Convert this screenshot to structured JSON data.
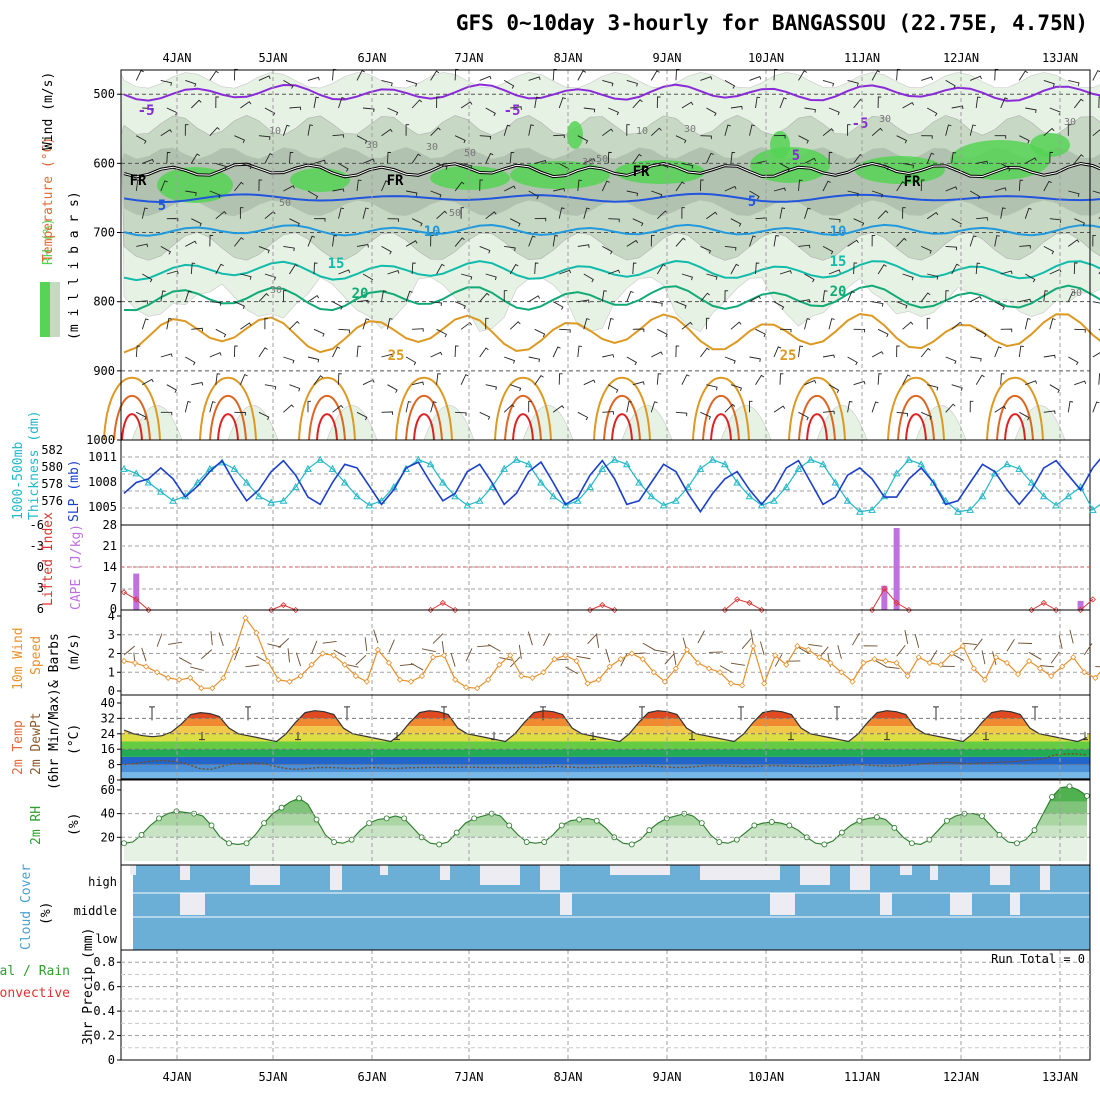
{
  "title": "GFS 0~10day 3-hourly for BANGASSOU (22.75E, 4.75N)",
  "colors": {
    "frame": "#000000",
    "grid": "#a0a0a0",
    "rh_light": "#e6f2e4",
    "rh_mid": "#c7d9c5",
    "rh_dark": "#a9b8a8",
    "rh_green": "#55d455",
    "temp_purple": "#8a2bd8",
    "temp_blue": "#2255dd",
    "temp_lightblue": "#2299dd",
    "temp_teal": "#11bbaa",
    "temp_green": "#11aa77",
    "temp_orange": "#dd9922",
    "temp_darkorange": "#dd6622",
    "temp_red": "#dd2222",
    "slp": "#1a3fcc",
    "thickness": "#22b8c8",
    "cape": "#c070e0",
    "lifted": "#dd3333",
    "wind10m": "#e8902a",
    "rh2m": "#2fa02f",
    "cloud": "#6baed6",
    "cloud_gap": "#ececf2"
  },
  "x_axis": {
    "labels": [
      "4JAN",
      "5JAN",
      "6JAN",
      "7JAN",
      "8JAN",
      "9JAN",
      "10JAN",
      "11JAN",
      "12JAN",
      "13JAN"
    ]
  },
  "panels": {
    "upper": {
      "label_rh": "RH (%)",
      "label_temp": "Temperature (°C)",
      "label_wind": "Wind (m/s)",
      "label_unit": "(m i l l i b a r s)",
      "y_ticks": [
        "500",
        "600",
        "700",
        "800",
        "900",
        "1000"
      ],
      "contour_labels": [
        "-5",
        "-5",
        "-5",
        "5",
        "5",
        "5",
        "10",
        "10",
        "15",
        "15",
        "20",
        "20",
        "25",
        "25",
        "FR",
        "FR",
        "FR",
        "FR",
        "10",
        "10",
        "30",
        "30",
        "50",
        "50",
        "30",
        "30",
        "30",
        "30",
        "30",
        "50",
        "50",
        "30"
      ]
    },
    "slp": {
      "label_thick": "1000-500mb",
      "label_thick2": "Thickness (dm)",
      "label_slp": "SLP (mb)",
      "left_ticks": [
        "582",
        "580",
        "578",
        "576"
      ],
      "right_ticks": [
        "1011",
        "1008",
        "1005"
      ]
    },
    "cape": {
      "label_li": "Lifted Index",
      "label_cape": "CAPE (J/kg)",
      "left_ticks": [
        "-6",
        "-3",
        "0",
        "3",
        "6"
      ],
      "right_ticks": [
        "28",
        "21",
        "14",
        "7",
        "0"
      ]
    },
    "wind10m": {
      "label1": "10m Wind",
      "label2": "Speed",
      "label3": "& Barbs",
      "unit": "(m/s)",
      "ticks": [
        "4",
        "3",
        "2",
        "1",
        "0"
      ]
    },
    "temp2m": {
      "label1": "2m Temp",
      "label2": "2m DewPt",
      "label3": "(6hr Min/Max)",
      "unit": "(°C)",
      "ticks": [
        "40",
        "32",
        "24",
        "16",
        "8",
        "0"
      ]
    },
    "rh2m": {
      "label": "2m RH",
      "unit": "(%)",
      "ticks": [
        "60",
        "40",
        "20"
      ]
    },
    "cloud": {
      "label": "Cloud Cover",
      "unit": "(%)",
      "levels": [
        "high",
        "middle",
        "low"
      ]
    },
    "precip": {
      "label_total": "Total / Rain",
      "label_conv": "Convective",
      "label_axis": "3hr Precip (mm)",
      "run_total": "Run Total = 0",
      "ticks": [
        "0.8",
        "0.6",
        "0.4",
        "0.2",
        "0"
      ]
    }
  },
  "chart_data": [
    {
      "type": "line",
      "title": "SLP (mb)",
      "series": [
        {
          "name": "SLP",
          "values": [
            1006.5,
            1008.0,
            1008.5,
            1010.0,
            1008.5,
            1006.0,
            1007.5,
            1009.5,
            1011.0,
            1008.0,
            1005.5,
            1007.0,
            1009.5,
            1011.0,
            1009.0,
            1006.0,
            1005.0,
            1008.0,
            1010.5,
            1010.0,
            1007.5,
            1005.0,
            1007.0,
            1010.0,
            1010.8,
            1008.0,
            1005.5,
            1006.5,
            1009.5,
            1010.5,
            1008.0,
            1005.0,
            1006.5,
            1009.5,
            1010.8,
            1008.0,
            1005.0,
            1006.0,
            1009.0,
            1011.0,
            1008.5,
            1005.0,
            1005.5,
            1008.0,
            1010.5,
            1009.5,
            1006.5,
            1004.0,
            1006.5,
            1008.5,
            1009.5,
            1007.0,
            1005.0,
            1007.0,
            1010.0,
            1011.0,
            1008.0,
            1005.0,
            1006.0,
            1009.0,
            1010.0,
            1008.5,
            1006.0,
            1006.0,
            1008.5,
            1010.0,
            1008.0,
            1005.0,
            1005.5,
            1008.0,
            1010.5,
            1009.5,
            1007.0,
            1005.0,
            1007.0,
            1010.0,
            1011.0,
            1009.0,
            1007.0,
            1010.0,
            1012.0
          ]
        }
      ],
      "ylim": [
        1003,
        1013
      ]
    },
    {
      "type": "line",
      "title": "1000-500mb Thickness (dm)",
      "series": [
        {
          "name": "Thickness",
          "values": [
            580.5,
            580.0,
            579.0,
            578.0,
            577.0,
            577.5,
            579.0,
            580.5,
            581.2,
            580.5,
            579.0,
            577.5,
            576.8,
            577.0,
            578.5,
            580.5,
            581.5,
            580.5,
            579.0,
            577.5,
            576.5,
            577.0,
            578.5,
            580.5,
            581.5,
            581.0,
            579.0,
            577.5,
            576.5,
            577.0,
            578.5,
            580.5,
            581.5,
            581.0,
            579.0,
            577.5,
            576.5,
            577.0,
            578.5,
            580.5,
            581.5,
            581.0,
            579.0,
            577.5,
            576.5,
            577.0,
            578.5,
            580.5,
            581.5,
            581.0,
            579.0,
            577.5,
            576.5,
            577.0,
            578.5,
            580.5,
            581.5,
            581.0,
            579.0,
            577.0,
            575.8,
            576.0,
            577.5,
            580.0,
            581.5,
            581.0,
            579.0,
            577.0,
            575.8,
            576.0,
            577.5,
            580.0,
            581.0,
            580.5,
            579.0,
            577.5,
            576.5,
            577.5,
            578.5,
            576.0,
            577.0
          ]
        }
      ],
      "ylim": [
        575,
        583
      ]
    },
    {
      "type": "bar",
      "title": "CAPE (J/kg)",
      "x_index": [
        1,
        62,
        63,
        78
      ],
      "values": [
        12,
        8,
        27,
        3
      ],
      "ylim": [
        0,
        28
      ]
    },
    {
      "type": "line",
      "title": "Lifted Index",
      "x_index": [
        0,
        1,
        2,
        12,
        13,
        14,
        25,
        26,
        27,
        38,
        39,
        40,
        49,
        50,
        51,
        52,
        61,
        62,
        63,
        64,
        74,
        75,
        76,
        78,
        79
      ],
      "values": [
        3.5,
        4.5,
        6,
        6,
        5.3,
        6,
        6,
        5,
        6,
        6,
        5.3,
        6,
        6,
        4.5,
        5,
        6,
        6,
        3,
        5,
        6,
        6,
        5,
        6,
        6,
        4.5
      ],
      "ylim": [
        -6,
        6
      ]
    },
    {
      "type": "line",
      "title": "10m Wind Speed (m/s)",
      "series": [
        {
          "name": "Speed",
          "values": [
            1.6,
            1.5,
            1.3,
            1.0,
            0.7,
            0.6,
            0.7,
            0.15,
            0.15,
            0.7,
            2.1,
            3.9,
            3.1,
            1.6,
            0.6,
            0.5,
            0.8,
            1.4,
            2.0,
            1.9,
            1.4,
            0.8,
            0.5,
            2.2,
            1.5,
            0.6,
            0.5,
            0.8,
            1.8,
            1.9,
            0.6,
            0.2,
            0.15,
            0.6,
            1.4,
            1.9,
            0.8,
            0.7,
            1.0,
            1.7,
            1.9,
            1.6,
            0.4,
            0.6,
            1.3,
            1.7,
            2.0,
            1.7,
            1.0,
            0.5,
            1.2,
            2.2,
            1.5,
            1.2,
            1.0,
            0.4,
            0.3,
            2.4,
            0.4,
            1.9,
            1.4,
            2.4,
            2.2,
            1.8,
            1.5,
            1.0,
            0.5,
            1.5,
            1.7,
            1.6,
            1.5,
            0.8,
            1.8,
            1.5,
            1.4,
            2.0,
            2.4,
            1.2,
            0.6,
            1.8,
            1.5,
            0.9,
            1.6,
            1.2,
            0.8,
            1.3,
            1.8,
            1.0,
            0.7,
            1.4
          ]
        }
      ],
      "ylim": [
        0,
        4
      ]
    },
    {
      "type": "area",
      "title": "2m Temp (°C)",
      "series": [
        {
          "name": "Temp",
          "values": [
            26,
            24,
            23,
            22.5,
            23,
            25,
            29,
            34,
            35,
            34.5,
            33,
            27,
            24,
            23,
            22,
            21,
            20,
            24,
            30,
            35,
            36,
            35.5,
            34,
            27,
            24,
            23,
            22,
            21,
            20,
            24,
            30,
            35,
            36,
            35.5,
            34,
            27,
            24,
            23,
            22,
            21,
            20,
            24,
            30,
            35,
            36,
            35.5,
            34,
            27,
            24,
            23,
            22,
            21,
            20,
            24,
            30,
            35,
            36,
            35.5,
            34,
            27,
            24,
            23,
            22,
            21,
            20,
            24,
            30,
            35,
            36,
            35.5,
            34,
            27,
            24,
            23,
            22,
            21,
            20,
            24,
            30,
            35,
            36,
            35.5,
            34,
            27,
            24,
            23,
            22,
            21,
            20,
            24,
            30,
            35,
            36,
            35.5,
            34,
            27,
            24,
            23,
            22,
            21,
            20,
            22
          ]
        },
        {
          "name": "DewPt",
          "values": [
            8,
            8.5,
            9.5,
            10,
            10,
            9.5,
            8,
            6,
            5.5,
            7,
            8.5,
            8.5,
            8.8,
            8.5,
            7,
            6,
            5.5,
            6,
            6.5,
            6.5,
            6.3,
            6,
            6.2,
            6.5,
            6.2,
            6,
            6.3,
            6.5,
            6.5,
            6.6,
            6.5,
            6.6,
            6.7,
            6.5,
            6.5,
            6.4,
            6.5,
            6.6,
            6.5,
            6.8,
            7,
            6.8,
            6.5,
            6.5,
            6.7,
            6.8,
            6.8,
            7,
            7.2,
            7,
            6.8,
            6.5,
            6.6,
            7,
            7.5,
            7.4,
            7.2,
            7,
            7,
            7.2,
            7.5,
            7.3,
            7.1,
            7,
            7,
            7.2,
            7.6,
            7.8,
            8,
            7.6,
            7.3,
            7.2,
            7.5,
            8,
            8.5,
            9,
            9.2,
            8.8,
            8.5,
            8.8,
            9,
            9.3,
            9.5,
            10,
            10.5,
            11,
            13,
            13.5,
            13.6,
            13
          ]
        }
      ],
      "ylim": [
        0,
        40
      ]
    },
    {
      "type": "area",
      "title": "2m RH (%)",
      "series": [
        {
          "name": "RH",
          "values": [
            15,
            16,
            22,
            30,
            36,
            40,
            42,
            41,
            40,
            38,
            30,
            20,
            15,
            14,
            15,
            22,
            32,
            40,
            45,
            50,
            53,
            48,
            35,
            22,
            16,
            15,
            18,
            26,
            32,
            35,
            36,
            38,
            36,
            28,
            20,
            15,
            14,
            16,
            24,
            32,
            36,
            38,
            40,
            38,
            30,
            22,
            16,
            15,
            16,
            22,
            30,
            34,
            35,
            36,
            34,
            28,
            20,
            15,
            14,
            18,
            26,
            32,
            36,
            38,
            40,
            38,
            32,
            22,
            16,
            15,
            18,
            24,
            30,
            32,
            33,
            32,
            30,
            26,
            20,
            15,
            14,
            17,
            24,
            30,
            34,
            36,
            37,
            35,
            28,
            20,
            15,
            14,
            18,
            26,
            34,
            38,
            40,
            40,
            38,
            30,
            22,
            16,
            15,
            18,
            26,
            40,
            54,
            62,
            63,
            60,
            55
          ]
        }
      ],
      "ylim": [
        0,
        65
      ]
    }
  ]
}
